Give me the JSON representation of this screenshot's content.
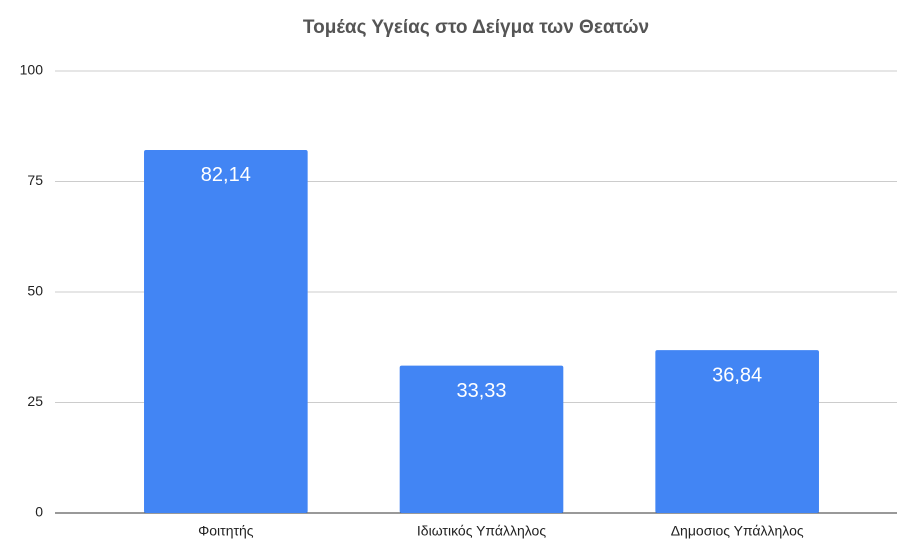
{
  "chart_data": {
    "type": "bar",
    "title": "Τομέας Υγείας στο Δείγμα των Θεατών",
    "categories": [
      "Φοιτητής",
      "Ιδιωτικός Υπάλληλος",
      "Δημοσιος Υπάλληλος"
    ],
    "values": [
      82.14,
      33.33,
      36.84
    ],
    "value_labels": [
      "82,14",
      "33,33",
      "36,84"
    ],
    "color": "#4285f4",
    "ylim": [
      0,
      100
    ],
    "yticks": [
      0,
      25,
      50,
      75,
      100
    ],
    "grid": true
  }
}
